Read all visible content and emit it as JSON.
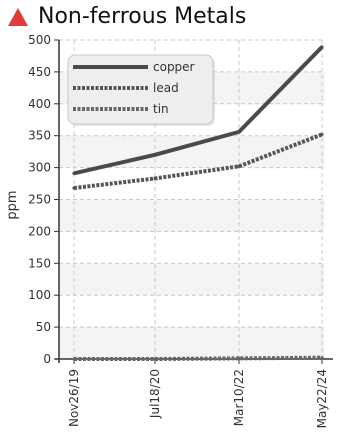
{
  "widget": {
    "title": "Non-ferrous Metals",
    "alert_icon": "red-up-triangle-icon",
    "alert_color": "#e03c3c"
  },
  "chart_data": {
    "type": "line",
    "title": "Non-ferrous Metals",
    "xlabel": "",
    "ylabel": "ppm",
    "categories": [
      "Nov26/19",
      "Jul18/20",
      "Mar10/22",
      "May22/24"
    ],
    "ylim": [
      0,
      500
    ],
    "yticks": [
      0,
      50,
      100,
      150,
      200,
      250,
      300,
      350,
      400,
      450,
      500
    ],
    "grid": true,
    "legend_position": "top-left",
    "series": [
      {
        "name": "copper",
        "values": [
          291,
          320,
          356,
          489
        ],
        "color": "#4a4a4a",
        "style": "solid"
      },
      {
        "name": "lead",
        "values": [
          268,
          283,
          302,
          352
        ],
        "color": "#555555",
        "style": "dashed"
      },
      {
        "name": "tin",
        "values": [
          0,
          0,
          1,
          2
        ],
        "color": "#666666",
        "style": "dashed"
      }
    ]
  }
}
